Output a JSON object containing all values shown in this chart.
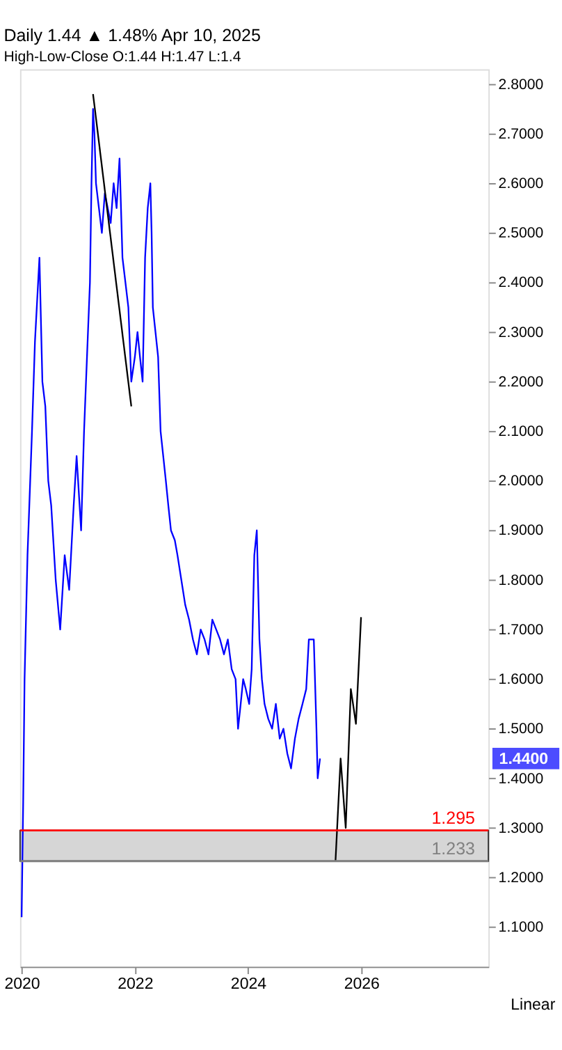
{
  "chart_data": {
    "type": "line",
    "title": "Daily 1.44 ▲ 1.48% Apr 10, 2025",
    "subtitle": "High-Low-Close O:1.44 H:1.47 L:1.4",
    "series": [
      {
        "color": "#0000ff",
        "x": [
          "2020-01-01",
          "2020-01-11",
          "2020-01-20",
          "2020-02-08",
          "2020-03-08",
          "2020-03-27",
          "2020-04-25",
          "2020-05-14",
          "2020-06-02",
          "2020-06-21",
          "2020-07-10",
          "2020-08-08",
          "2020-09-06",
          "2020-10-05",
          "2020-11-03",
          "2020-12-02",
          "2020-12-21",
          "2021-01-19",
          "2021-02-07",
          "2021-02-26",
          "2021-03-17",
          "2021-03-27",
          "2021-04-06",
          "2021-04-15",
          "2021-04-25",
          "2021-05-14",
          "2021-06-02",
          "2021-06-21",
          "2021-07-10",
          "2021-07-29",
          "2021-08-17",
          "2021-09-05",
          "2021-09-24",
          "2021-10-13",
          "2021-11-01",
          "2021-11-20",
          "2021-12-09",
          "2022-01-01",
          "2022-01-18",
          "2022-02-03",
          "2022-02-20",
          "2022-03-08",
          "2022-03-25",
          "2022-04-11",
          "2022-04-19",
          "2022-04-27",
          "2022-05-14",
          "2022-05-31",
          "2022-06-16",
          "2022-07-03",
          "2022-07-20",
          "2022-08-05",
          "2022-08-22",
          "2022-09-16",
          "2022-10-03",
          "2022-10-28",
          "2022-11-22",
          "2022-12-17",
          "2023-01-11",
          "2023-02-05",
          "2023-03-02",
          "2023-03-27",
          "2023-04-21",
          "2023-05-16",
          "2023-06-10",
          "2023-07-05",
          "2023-07-30",
          "2023-08-24",
          "2023-09-18",
          "2023-10-13",
          "2023-10-29",
          "2023-11-15",
          "2023-12-01",
          "2023-12-18",
          "2024-01-09",
          "2024-01-25",
          "2024-02-11",
          "2024-02-27",
          "2024-03-15",
          "2024-03-31",
          "2024-04-17",
          "2024-05-11",
          "2024-06-05",
          "2024-06-29",
          "2024-07-24",
          "2024-08-17",
          "2024-09-11",
          "2024-10-05",
          "2024-10-30",
          "2024-11-23",
          "2024-12-18",
          "2025-01-11",
          "2025-01-28",
          "2025-02-13",
          "2025-03-01",
          "2025-03-18",
          "2025-03-26",
          "2025-04-10"
        ],
        "values": [
          1.12,
          1.35,
          1.6,
          1.85,
          2.1,
          2.28,
          2.45,
          2.2,
          2.15,
          2.0,
          1.95,
          1.8,
          1.7,
          1.85,
          1.78,
          1.95,
          2.05,
          1.9,
          2.1,
          2.25,
          2.4,
          2.6,
          2.75,
          2.7,
          2.6,
          2.55,
          2.5,
          2.58,
          2.55,
          2.52,
          2.6,
          2.55,
          2.65,
          2.45,
          2.4,
          2.35,
          2.2,
          2.25,
          2.3,
          2.25,
          2.2,
          2.45,
          2.55,
          2.6,
          2.5,
          2.35,
          2.3,
          2.25,
          2.1,
          2.05,
          2.0,
          1.95,
          1.9,
          1.88,
          1.85,
          1.8,
          1.75,
          1.72,
          1.68,
          1.65,
          1.7,
          1.68,
          1.65,
          1.72,
          1.7,
          1.68,
          1.65,
          1.68,
          1.62,
          1.6,
          1.5,
          1.55,
          1.6,
          1.58,
          1.55,
          1.62,
          1.85,
          1.9,
          1.68,
          1.6,
          1.55,
          1.52,
          1.5,
          1.55,
          1.48,
          1.5,
          1.45,
          1.42,
          1.48,
          1.52,
          1.55,
          1.58,
          1.68,
          1.68,
          1.68,
          1.5,
          1.4,
          1.44
        ]
      },
      {
        "color": "#000000",
        "x": [
          "2021-04-06",
          "2021-12-09"
        ],
        "values": [
          2.78,
          2.15
        ]
      },
      {
        "color": "#000000",
        "x": [
          "2025-07-19",
          "2025-08-21",
          "2025-09-23",
          "2025-10-26",
          "2025-11-28",
          "2025-12-31"
        ],
        "values": [
          1.233,
          1.44,
          1.3,
          1.58,
          1.51,
          1.725
        ]
      }
    ],
    "xlim": [
      "2019-12-22",
      "2028-04-01"
    ],
    "xticks": [
      {
        "value": "2020-01-01",
        "label": "2020"
      },
      {
        "value": "2022-01-01",
        "label": "2022"
      },
      {
        "value": "2024-01-01",
        "label": "2024"
      },
      {
        "value": "2026-01-01",
        "label": "2026"
      }
    ],
    "ylim": [
      1.02,
      2.83
    ],
    "yticks": [
      {
        "value": 1.1,
        "label": "1.1000"
      },
      {
        "value": 1.2,
        "label": "1.2000"
      },
      {
        "value": 1.3,
        "label": "1.3000"
      },
      {
        "value": 1.4,
        "label": "1.4000"
      },
      {
        "value": 1.5,
        "label": "1.5000"
      },
      {
        "value": 1.6,
        "label": "1.6000"
      },
      {
        "value": 1.7,
        "label": "1.7000"
      },
      {
        "value": 1.8,
        "label": "1.8000"
      },
      {
        "value": 1.9,
        "label": "1.9000"
      },
      {
        "value": 2.0,
        "label": "2.0000"
      },
      {
        "value": 2.1,
        "label": "2.1000"
      },
      {
        "value": 2.2,
        "label": "2.2000"
      },
      {
        "value": 2.3,
        "label": "2.3000"
      },
      {
        "value": 2.4,
        "label": "2.4000"
      },
      {
        "value": 2.5,
        "label": "2.5000"
      },
      {
        "value": 2.6,
        "label": "2.6000"
      },
      {
        "value": 2.7,
        "label": "2.7000"
      },
      {
        "value": 2.8,
        "label": "2.8000"
      }
    ],
    "ref_lines": [
      {
        "axis": "y",
        "value": 1.295,
        "label": "1.295",
        "color": "#ff0000"
      },
      {
        "axis": "y",
        "value": 1.233,
        "label": "1.233",
        "color": "#808080"
      }
    ],
    "bands": [
      {
        "axis": "y",
        "from": 1.233,
        "to": 1.295,
        "color": "#cccccc"
      }
    ],
    "annotations": [
      "1.4400",
      "Linear"
    ],
    "grid": false
  }
}
